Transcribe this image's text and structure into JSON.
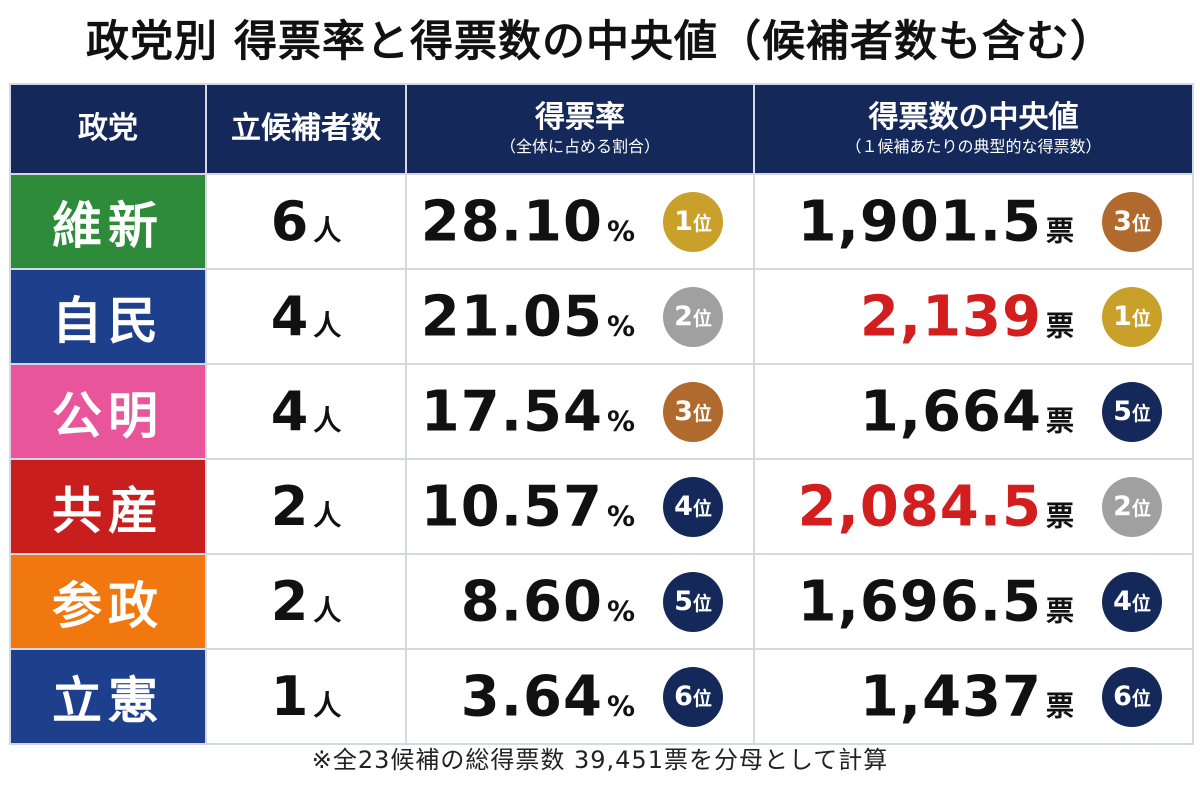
{
  "title": "政党別 得票率と得票数の中央値（候補者数も含む）",
  "colors": {
    "header_bg": "#14285a",
    "highlight_red": "#d21e1e",
    "rank_1": "#c8a02a",
    "rank_2": "#a0a0a0",
    "rank_3": "#b06a2e",
    "rank_other": "#14285a"
  },
  "headers": {
    "party": "政党",
    "candidates": "立候補者数",
    "rate": "得票率",
    "rate_sub": "（全体に占める割合）",
    "median": "得票数の中央値",
    "median_sub": "（１候補あたりの典型的な得票数）"
  },
  "units": {
    "person": "人",
    "percent": "%",
    "vote": "票",
    "rank": "位"
  },
  "chart_data": {
    "type": "table",
    "title": "政党別 得票率と得票数の中央値（候補者数も含む）",
    "columns": [
      "政党",
      "立候補者数",
      "得票率",
      "得票数の中央値"
    ],
    "rows": [
      {
        "party": "維新",
        "party_color": "#2e8b3a",
        "candidates": "6",
        "rate": "28.10",
        "rate_rank": "1",
        "median": "1,901.5",
        "median_rank": "3",
        "median_highlight": false
      },
      {
        "party": "自民",
        "party_color": "#1e3f8c",
        "candidates": "4",
        "rate": "21.05",
        "rate_rank": "2",
        "median": "2,139",
        "median_rank": "1",
        "median_highlight": true
      },
      {
        "party": "公明",
        "party_color": "#e8559a",
        "candidates": "4",
        "rate": "17.54",
        "rate_rank": "3",
        "median": "1,664",
        "median_rank": "5",
        "median_highlight": false
      },
      {
        "party": "共産",
        "party_color": "#c81e1e",
        "candidates": "2",
        "rate": "10.57",
        "rate_rank": "4",
        "median": "2,084.5",
        "median_rank": "2",
        "median_highlight": true
      },
      {
        "party": "参政",
        "party_color": "#f0780f",
        "candidates": "2",
        "rate": "8.60",
        "rate_rank": "5",
        "median": "1,696.5",
        "median_rank": "4",
        "median_highlight": false
      },
      {
        "party": "立憲",
        "party_color": "#1e3f8c",
        "candidates": "1",
        "rate": "3.64",
        "rate_rank": "6",
        "median": "1,437",
        "median_rank": "6",
        "median_highlight": false
      }
    ]
  },
  "footnote": "※全23候補の総得票数 39,451票を分母として計算"
}
